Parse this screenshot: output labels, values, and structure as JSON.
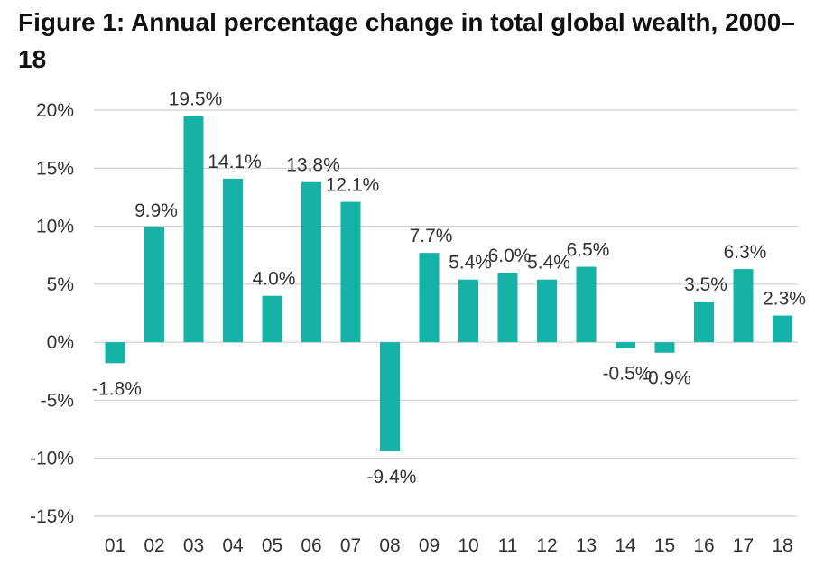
{
  "colors": {
    "bar": "#15b2a8",
    "grid": "#c8c8c8",
    "text": "#333333",
    "title": "#111111"
  },
  "chart_data": {
    "type": "bar",
    "title": "Figure 1: Annual percentage change in total global wealth, 2000–18",
    "xlabel": "",
    "ylabel": "",
    "ylim": [
      -15,
      20
    ],
    "y_ticks": [
      20,
      15,
      10,
      5,
      0,
      -5,
      -10,
      -15
    ],
    "y_tick_labels": [
      "20%",
      "15%",
      "10%",
      "5%",
      "0%",
      "-5%",
      "-10%",
      "-15%"
    ],
    "grid": true,
    "categories": [
      "01",
      "02",
      "03",
      "04",
      "05",
      "06",
      "07",
      "08",
      "09",
      "10",
      "11",
      "12",
      "13",
      "14",
      "15",
      "16",
      "17",
      "18"
    ],
    "values": [
      -1.8,
      9.9,
      19.5,
      14.1,
      4.0,
      13.8,
      12.1,
      -9.4,
      7.7,
      5.4,
      6.0,
      5.4,
      6.5,
      -0.5,
      -0.9,
      3.5,
      6.3,
      2.3
    ],
    "data_labels": [
      "-1.8%",
      "9.9%",
      "19.5%",
      "14.1%",
      "4.0%",
      "13.8%",
      "12.1%",
      "-9.4%",
      "7.7%",
      "5.4%",
      "6.0%",
      "5.4%",
      "6.5%",
      "-0.5%",
      "-0.9%",
      "3.5%",
      "6.3%",
      "2.3%"
    ]
  }
}
